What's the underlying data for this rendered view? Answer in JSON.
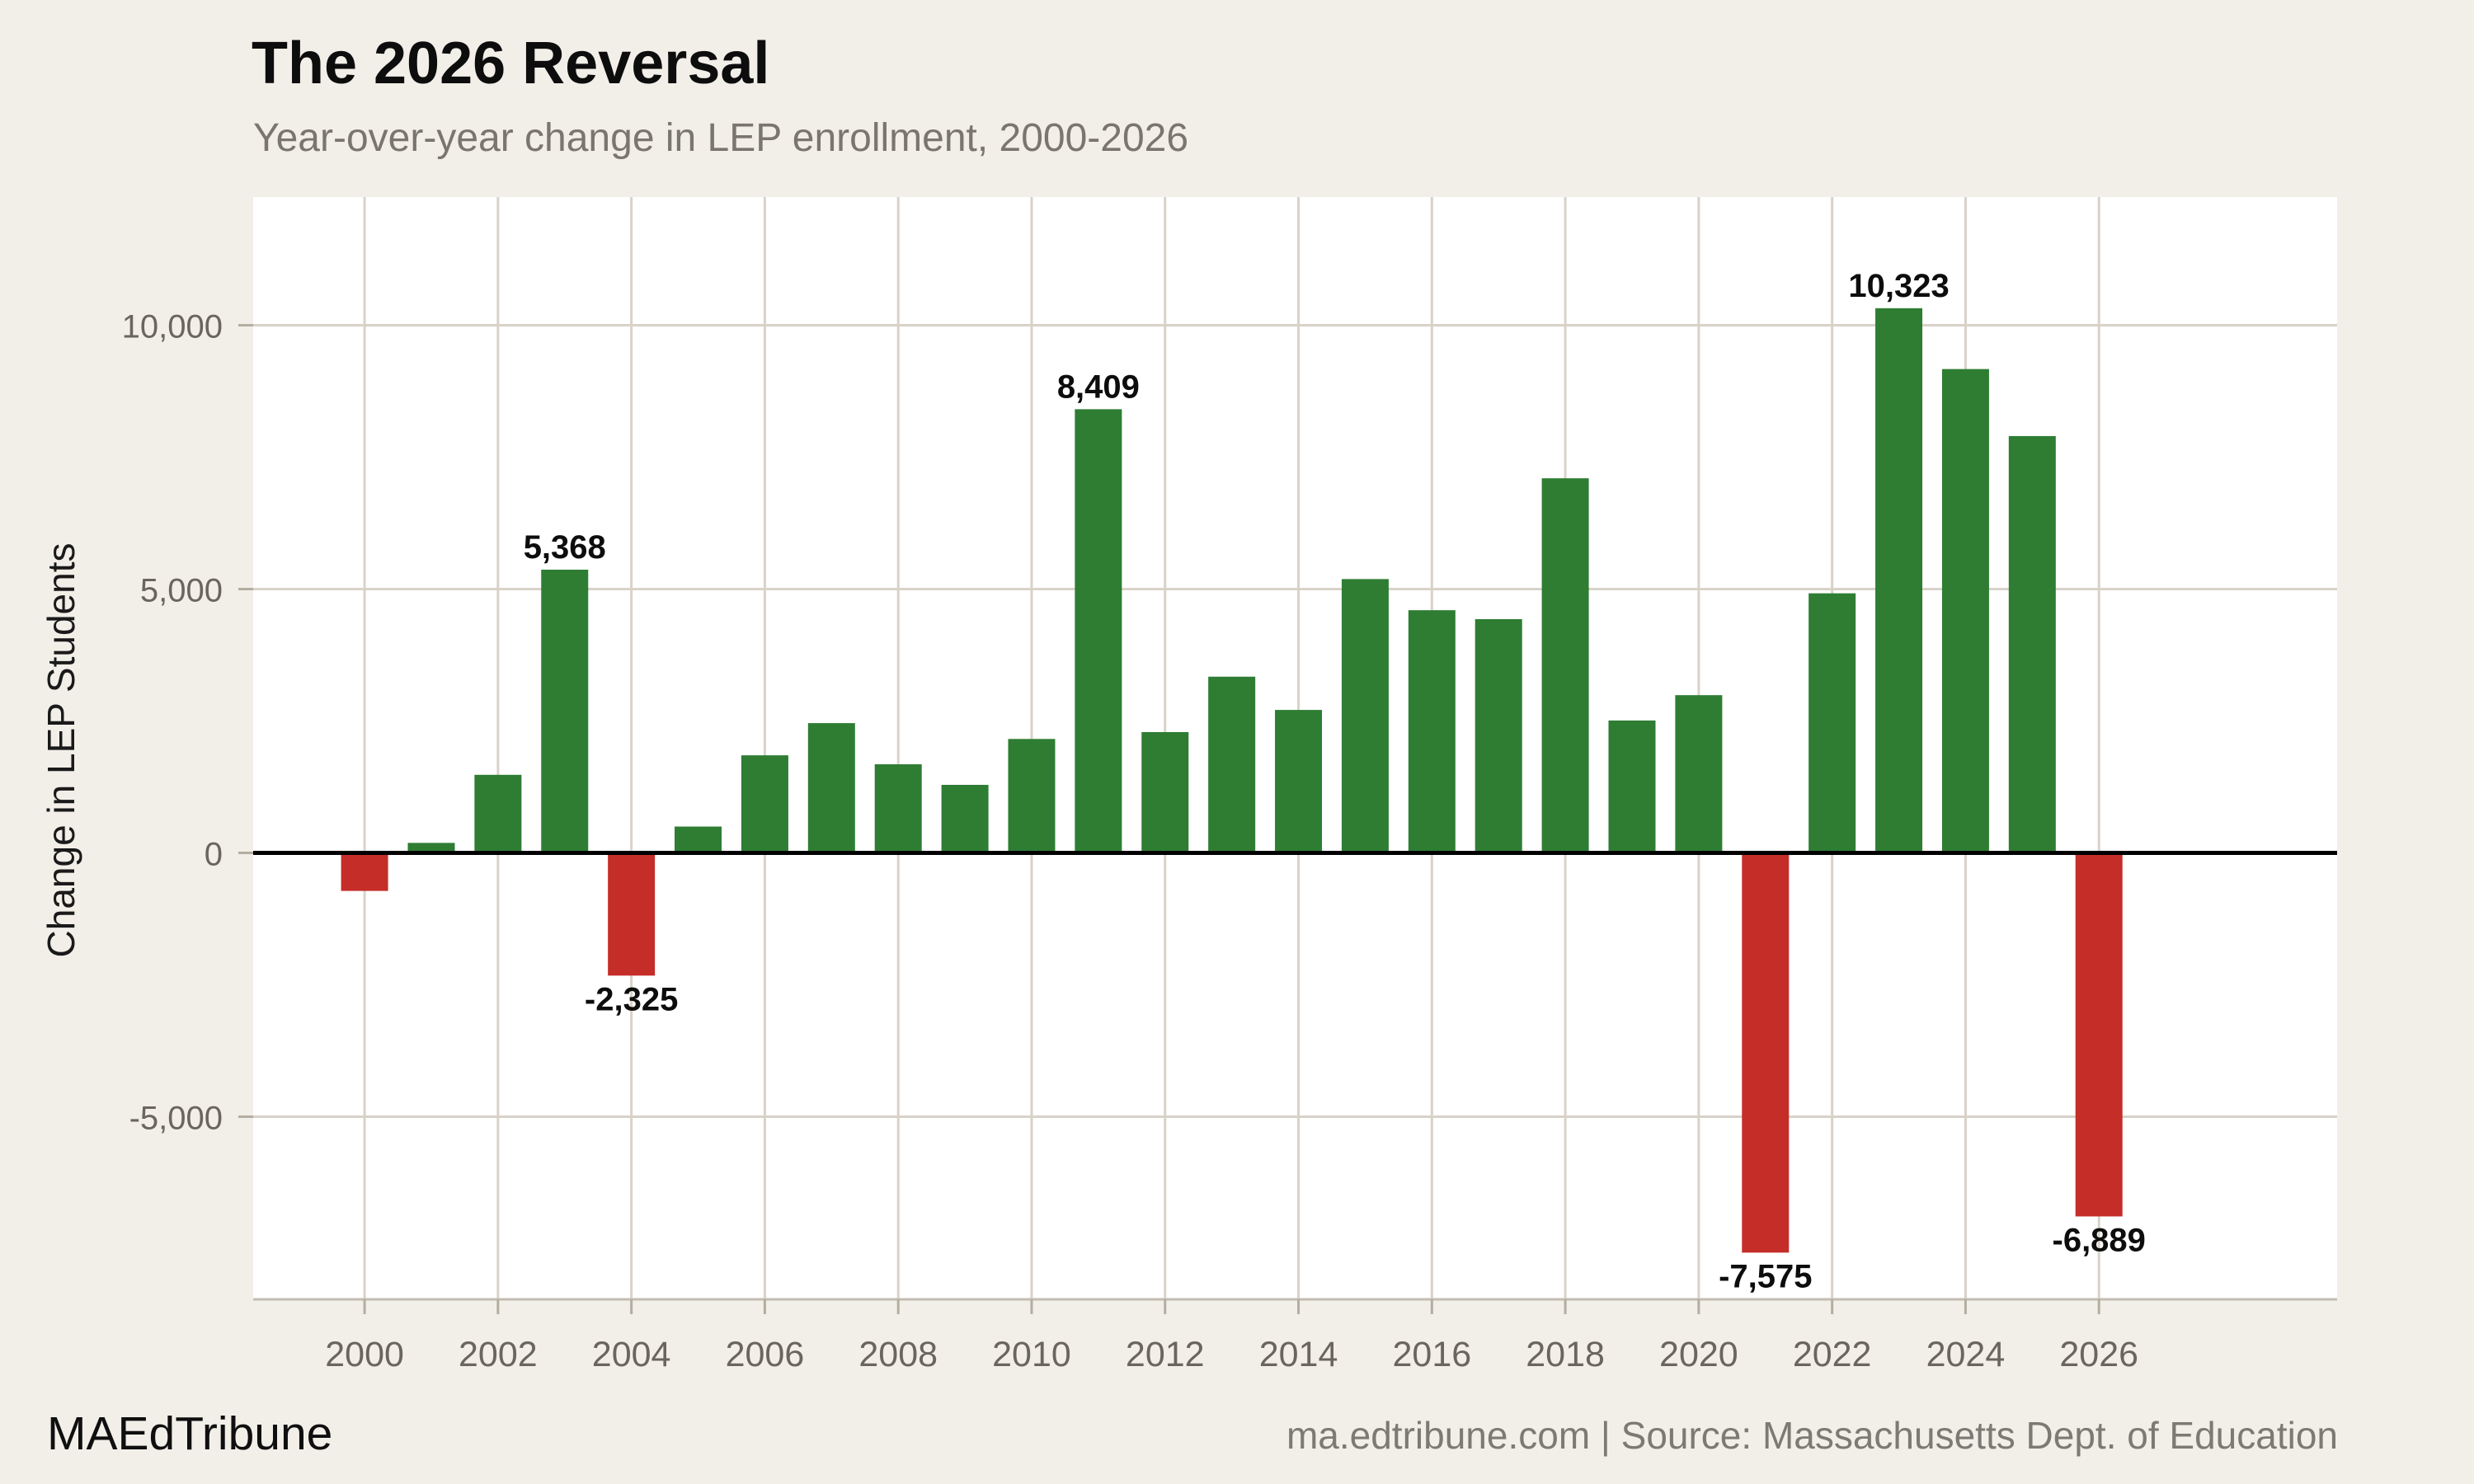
{
  "footer": {
    "brand": "MAEdTribune",
    "source": "ma.edtribune.com | Source: Massachusetts Dept. of Education"
  },
  "chart_data": {
    "type": "bar",
    "title": "The 2026 Reversal",
    "subtitle": "Year-over-year change in LEP enrollment, 2000-2026",
    "xlabel": "",
    "ylabel": "Change in LEP Students",
    "categories": [
      2000,
      2001,
      2002,
      2003,
      2004,
      2005,
      2006,
      2007,
      2008,
      2009,
      2010,
      2011,
      2012,
      2013,
      2014,
      2015,
      2016,
      2017,
      2018,
      2019,
      2020,
      2021,
      2022,
      2023,
      2024,
      2025,
      2026
    ],
    "values": [
      -720,
      190,
      1480,
      5368,
      -2325,
      500,
      1850,
      2460,
      1680,
      1290,
      2160,
      8409,
      2290,
      3340,
      2710,
      5190,
      4600,
      4430,
      7100,
      2510,
      2990,
      -7575,
      4920,
      10323,
      9170,
      7900,
      -6889
    ],
    "data_labels": [
      {
        "year": 2003,
        "text": "5,368"
      },
      {
        "year": 2004,
        "text": "-2,325"
      },
      {
        "year": 2011,
        "text": "8,409"
      },
      {
        "year": 2021,
        "text": "-7,575"
      },
      {
        "year": 2023,
        "text": "10,323"
      },
      {
        "year": 2026,
        "text": "-6,889"
      }
    ],
    "x_ticks": [
      2000,
      2002,
      2004,
      2006,
      2008,
      2010,
      2012,
      2014,
      2016,
      2018,
      2020,
      2022,
      2024,
      2026
    ],
    "y_ticks": [
      {
        "value": 10000,
        "label": "10,000"
      },
      {
        "value": 5000,
        "label": "5,000"
      },
      {
        "value": 0,
        "label": "0"
      },
      {
        "value": -5000,
        "label": "-5,000"
      }
    ],
    "ylim": [
      -8460,
      12430
    ],
    "xlim": [
      1998.33,
      2029.57
    ],
    "grid": true,
    "legend": "none",
    "zero_line": true,
    "colors": {
      "positive": "#2e7d33",
      "negative": "#c52d28",
      "page_bg": "#f2efe8",
      "plot_bg": "#ffffff",
      "gridline": "#d8d2c9",
      "axis_line": "#c3bdb2",
      "tick": "#b3ada2",
      "zero_line": "#000000",
      "tick_label": "#6a655e",
      "value_label": "#0d0d0d"
    }
  }
}
